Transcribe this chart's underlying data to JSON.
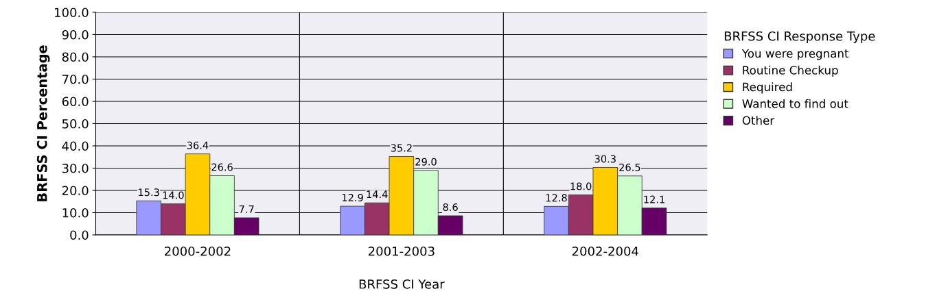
{
  "chart_data": {
    "type": "bar",
    "xlabel": "BRFSS CI Year",
    "ylabel": "BRFSS CI Percentage",
    "legend_title": "BRFSS CI Response Type",
    "categories": [
      "2000-2002",
      "2001-2003",
      "2002-2004"
    ],
    "series": [
      {
        "name": "You were pregnant",
        "color": "#9999ff",
        "values": [
          15.3,
          12.9,
          12.8
        ],
        "value_labels": [
          "15.3",
          "12.9",
          "12.8"
        ]
      },
      {
        "name": "Routine Checkup",
        "color": "#993366",
        "values": [
          14.0,
          14.4,
          18.0
        ],
        "value_labels": [
          "14.0",
          "14.4",
          "18.0"
        ]
      },
      {
        "name": "Required",
        "color": "#ffcc00",
        "values": [
          36.4,
          35.2,
          30.3
        ],
        "value_labels": [
          "36.4",
          "35.2",
          "30.3"
        ]
      },
      {
        "name": "Wanted to find out",
        "color": "#ccffcc",
        "values": [
          26.6,
          29.0,
          26.5
        ],
        "value_labels": [
          "26.6",
          "29.0",
          "26.5"
        ]
      },
      {
        "name": "Other",
        "color": "#660066",
        "values": [
          7.7,
          8.6,
          12.1
        ],
        "value_labels": [
          "7.7",
          "8.6",
          "12.1"
        ]
      }
    ],
    "ylim": [
      0,
      100
    ],
    "yticks": [
      {
        "value": 0,
        "label": "0.0"
      },
      {
        "value": 10,
        "label": "10.0"
      },
      {
        "value": 20,
        "label": "20.0"
      },
      {
        "value": 30,
        "label": "30.0"
      },
      {
        "value": 40,
        "label": "40.0"
      },
      {
        "value": 50,
        "label": "50.0"
      },
      {
        "value": 60,
        "label": "60.0"
      },
      {
        "value": 70,
        "label": "70.0"
      },
      {
        "value": 80,
        "label": "80.0"
      },
      {
        "value": 90,
        "label": "90.0"
      },
      {
        "value": 100,
        "label": "100.0"
      }
    ],
    "grid": true,
    "legend": "right"
  }
}
